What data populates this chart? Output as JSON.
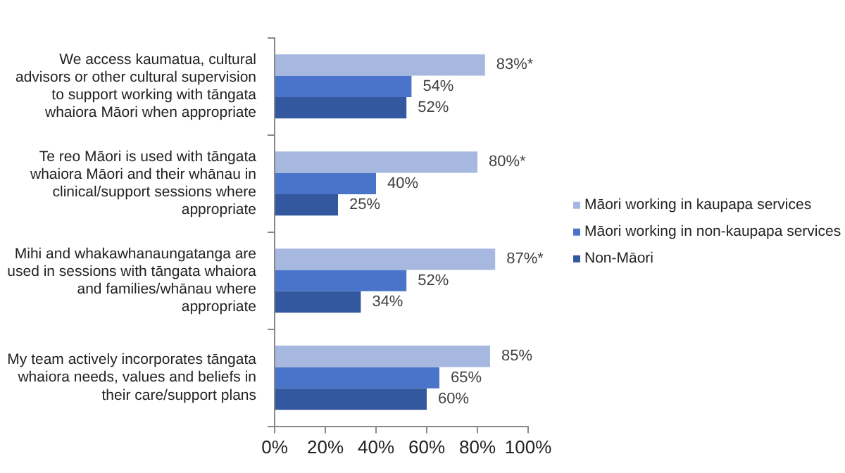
{
  "chart_data": {
    "type": "bar",
    "orientation": "horizontal",
    "categories": [
      "We access kaumatua, cultural advisors or other cultural supervision to support working with tāngata whaiora Māori when appropriate",
      "Te reo Māori is used with tāngata whaiora Māori and their whānau in clinical/support sessions where appropriate",
      "Mihi and whakawhanaungatanga are used in sessions with tāngata whaiora and families/whānau where appropriate",
      "My team actively incorporates tāngata whaiora needs, values and beliefs in their care/support plans"
    ],
    "series": [
      {
        "name": "Māori working in kaupapa services",
        "color": "#a6b7e0",
        "values": [
          83,
          80,
          87,
          85
        ],
        "value_labels": [
          "83%*",
          "80%*",
          "87%*",
          "85%"
        ]
      },
      {
        "name": "Māori working in non-kaupapa services",
        "color": "#4a74c9",
        "values": [
          54,
          40,
          52,
          65
        ],
        "value_labels": [
          "54%",
          "40%",
          "52%",
          "65%"
        ]
      },
      {
        "name": "Non-Māori",
        "color": "#34589f",
        "values": [
          52,
          25,
          34,
          60
        ],
        "value_labels": [
          "52%",
          "25%",
          "34%",
          "60%"
        ]
      }
    ],
    "xlim": [
      0,
      100
    ],
    "xticks": [
      {
        "value": 0,
        "label": "0%"
      },
      {
        "value": 20,
        "label": "20%"
      },
      {
        "value": 40,
        "label": "40%"
      },
      {
        "value": 60,
        "label": "60%"
      },
      {
        "value": 80,
        "label": "80%"
      },
      {
        "value": 100,
        "label": "100%"
      }
    ],
    "grid": false,
    "legend": "right"
  }
}
